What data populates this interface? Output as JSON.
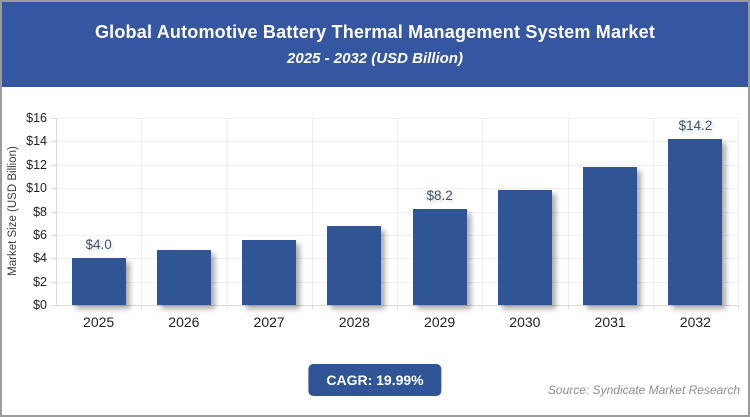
{
  "header": {
    "title": "Global Automotive Battery Thermal Management System Market",
    "subtitle": "2025 - 2032 (USD Billion)",
    "bg_color": "#3557A1",
    "text_color": "#FFFFFF"
  },
  "chart_data": {
    "type": "bar",
    "title": "Global Automotive Battery Thermal Management System Market",
    "subtitle": "2025 - 2032 (USD Billion)",
    "categories": [
      "2025",
      "2026",
      "2027",
      "2028",
      "2029",
      "2030",
      "2031",
      "2032"
    ],
    "values": [
      4.0,
      4.7,
      5.6,
      6.8,
      8.2,
      9.8,
      11.8,
      14.2
    ],
    "point_labels": [
      "$4.0",
      "",
      "",
      "",
      "$8.2",
      "",
      "",
      "$14.2"
    ],
    "xlabel": "",
    "ylabel": "Market Size (USD Billion)",
    "ylim": [
      0,
      16
    ],
    "ytick_step": 2,
    "ytick_labels": [
      "$0",
      "$2",
      "$4",
      "$6",
      "$8",
      "$10",
      "$12",
      "$14",
      "$16"
    ],
    "grid": true,
    "legend": false,
    "bar_color": "#2F5597",
    "value_label_color": "#44546A",
    "gridline_color": "#EFEFEF",
    "axis_color": "#D9D9D9"
  },
  "footer": {
    "cagr_label": "CAGR: 19.99%",
    "badge_color": "#2F5597",
    "source": "Source: Syndicate Market Research"
  }
}
